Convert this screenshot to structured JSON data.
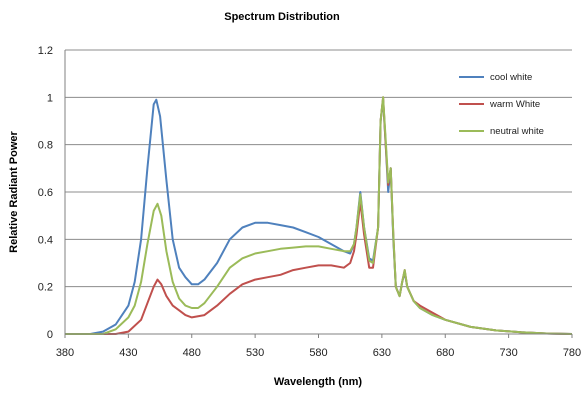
{
  "chart_data": {
    "type": "line",
    "title": "Spectrum Distribution",
    "xlabel": "Wavelength (nm)",
    "ylabel": "Relative Radiant Power",
    "xlim": [
      380,
      780
    ],
    "ylim": [
      0,
      1.2
    ],
    "xticks": [
      380,
      430,
      480,
      530,
      580,
      630,
      680,
      730,
      780
    ],
    "xtick_labels": [
      "380",
      "430",
      "480",
      "530",
      "580",
      "630",
      "680",
      "730",
      "780"
    ],
    "yticks": [
      0,
      0.2,
      0.4,
      0.6,
      0.8,
      1.0,
      1.2
    ],
    "ytick_labels": [
      "0",
      "0.2",
      "0.4",
      "0.6",
      "0.8",
      "1",
      "1.2"
    ],
    "grid": "horizontal",
    "legend_position": "top-right",
    "series": [
      {
        "name": "cool white",
        "color": "#4f81bd",
        "points": [
          [
            380,
            0
          ],
          [
            400,
            0
          ],
          [
            410,
            0.01
          ],
          [
            420,
            0.04
          ],
          [
            430,
            0.12
          ],
          [
            435,
            0.22
          ],
          [
            440,
            0.4
          ],
          [
            445,
            0.7
          ],
          [
            450,
            0.97
          ],
          [
            452,
            0.99
          ],
          [
            455,
            0.92
          ],
          [
            460,
            0.65
          ],
          [
            465,
            0.4
          ],
          [
            470,
            0.28
          ],
          [
            475,
            0.24
          ],
          [
            480,
            0.21
          ],
          [
            485,
            0.21
          ],
          [
            490,
            0.23
          ],
          [
            500,
            0.3
          ],
          [
            510,
            0.4
          ],
          [
            520,
            0.45
          ],
          [
            530,
            0.47
          ],
          [
            540,
            0.47
          ],
          [
            550,
            0.46
          ],
          [
            560,
            0.45
          ],
          [
            570,
            0.43
          ],
          [
            580,
            0.41
          ],
          [
            590,
            0.38
          ],
          [
            600,
            0.35
          ],
          [
            605,
            0.34
          ],
          [
            608,
            0.38
          ],
          [
            610,
            0.45
          ],
          [
            613,
            0.6
          ],
          [
            616,
            0.45
          ],
          [
            620,
            0.32
          ],
          [
            623,
            0.31
          ],
          [
            627,
            0.45
          ],
          [
            629,
            0.9
          ],
          [
            631,
            0.99
          ],
          [
            633,
            0.8
          ],
          [
            635,
            0.6
          ],
          [
            637,
            0.7
          ],
          [
            639,
            0.4
          ],
          [
            641,
            0.2
          ],
          [
            644,
            0.16
          ],
          [
            646,
            0.22
          ],
          [
            648,
            0.26
          ],
          [
            650,
            0.2
          ],
          [
            655,
            0.14
          ],
          [
            660,
            0.11
          ],
          [
            670,
            0.08
          ],
          [
            680,
            0.06
          ],
          [
            700,
            0.03
          ],
          [
            720,
            0.015
          ],
          [
            740,
            0.007
          ],
          [
            760,
            0.002
          ],
          [
            780,
            0
          ]
        ]
      },
      {
        "name": "warm White",
        "color": "#c0504d",
        "points": [
          [
            380,
            0
          ],
          [
            420,
            0
          ],
          [
            430,
            0.01
          ],
          [
            440,
            0.06
          ],
          [
            445,
            0.13
          ],
          [
            450,
            0.2
          ],
          [
            453,
            0.23
          ],
          [
            456,
            0.21
          ],
          [
            460,
            0.16
          ],
          [
            465,
            0.12
          ],
          [
            470,
            0.1
          ],
          [
            475,
            0.08
          ],
          [
            480,
            0.07
          ],
          [
            490,
            0.08
          ],
          [
            500,
            0.12
          ],
          [
            510,
            0.17
          ],
          [
            520,
            0.21
          ],
          [
            530,
            0.23
          ],
          [
            540,
            0.24
          ],
          [
            550,
            0.25
          ],
          [
            560,
            0.27
          ],
          [
            570,
            0.28
          ],
          [
            580,
            0.29
          ],
          [
            590,
            0.29
          ],
          [
            600,
            0.28
          ],
          [
            605,
            0.3
          ],
          [
            608,
            0.35
          ],
          [
            610,
            0.42
          ],
          [
            613,
            0.56
          ],
          [
            616,
            0.42
          ],
          [
            620,
            0.28
          ],
          [
            623,
            0.28
          ],
          [
            627,
            0.45
          ],
          [
            629,
            0.9
          ],
          [
            631,
            1.0
          ],
          [
            633,
            0.8
          ],
          [
            635,
            0.63
          ],
          [
            637,
            0.7
          ],
          [
            639,
            0.42
          ],
          [
            641,
            0.2
          ],
          [
            644,
            0.16
          ],
          [
            646,
            0.22
          ],
          [
            648,
            0.27
          ],
          [
            650,
            0.2
          ],
          [
            655,
            0.14
          ],
          [
            660,
            0.12
          ],
          [
            670,
            0.09
          ],
          [
            680,
            0.06
          ],
          [
            700,
            0.03
          ],
          [
            720,
            0.015
          ],
          [
            740,
            0.007
          ],
          [
            760,
            0.002
          ],
          [
            780,
            0
          ]
        ]
      },
      {
        "name": "neutral white",
        "color": "#9bbb59",
        "points": [
          [
            380,
            0
          ],
          [
            410,
            0
          ],
          [
            420,
            0.02
          ],
          [
            430,
            0.07
          ],
          [
            435,
            0.12
          ],
          [
            440,
            0.22
          ],
          [
            445,
            0.38
          ],
          [
            450,
            0.52
          ],
          [
            453,
            0.55
          ],
          [
            456,
            0.5
          ],
          [
            460,
            0.35
          ],
          [
            465,
            0.22
          ],
          [
            470,
            0.15
          ],
          [
            475,
            0.12
          ],
          [
            480,
            0.11
          ],
          [
            485,
            0.11
          ],
          [
            490,
            0.13
          ],
          [
            500,
            0.2
          ],
          [
            510,
            0.28
          ],
          [
            520,
            0.32
          ],
          [
            530,
            0.34
          ],
          [
            540,
            0.35
          ],
          [
            550,
            0.36
          ],
          [
            560,
            0.365
          ],
          [
            570,
            0.37
          ],
          [
            580,
            0.37
          ],
          [
            590,
            0.36
          ],
          [
            600,
            0.35
          ],
          [
            605,
            0.35
          ],
          [
            608,
            0.38
          ],
          [
            610,
            0.45
          ],
          [
            613,
            0.59
          ],
          [
            616,
            0.45
          ],
          [
            620,
            0.31
          ],
          [
            623,
            0.3
          ],
          [
            627,
            0.45
          ],
          [
            629,
            0.9
          ],
          [
            631,
            1.0
          ],
          [
            633,
            0.82
          ],
          [
            635,
            0.64
          ],
          [
            637,
            0.7
          ],
          [
            639,
            0.42
          ],
          [
            641,
            0.2
          ],
          [
            644,
            0.16
          ],
          [
            646,
            0.22
          ],
          [
            648,
            0.27
          ],
          [
            650,
            0.2
          ],
          [
            655,
            0.14
          ],
          [
            660,
            0.11
          ],
          [
            670,
            0.08
          ],
          [
            680,
            0.06
          ],
          [
            700,
            0.03
          ],
          [
            720,
            0.015
          ],
          [
            740,
            0.007
          ],
          [
            760,
            0.002
          ],
          [
            780,
            0
          ]
        ]
      }
    ]
  }
}
